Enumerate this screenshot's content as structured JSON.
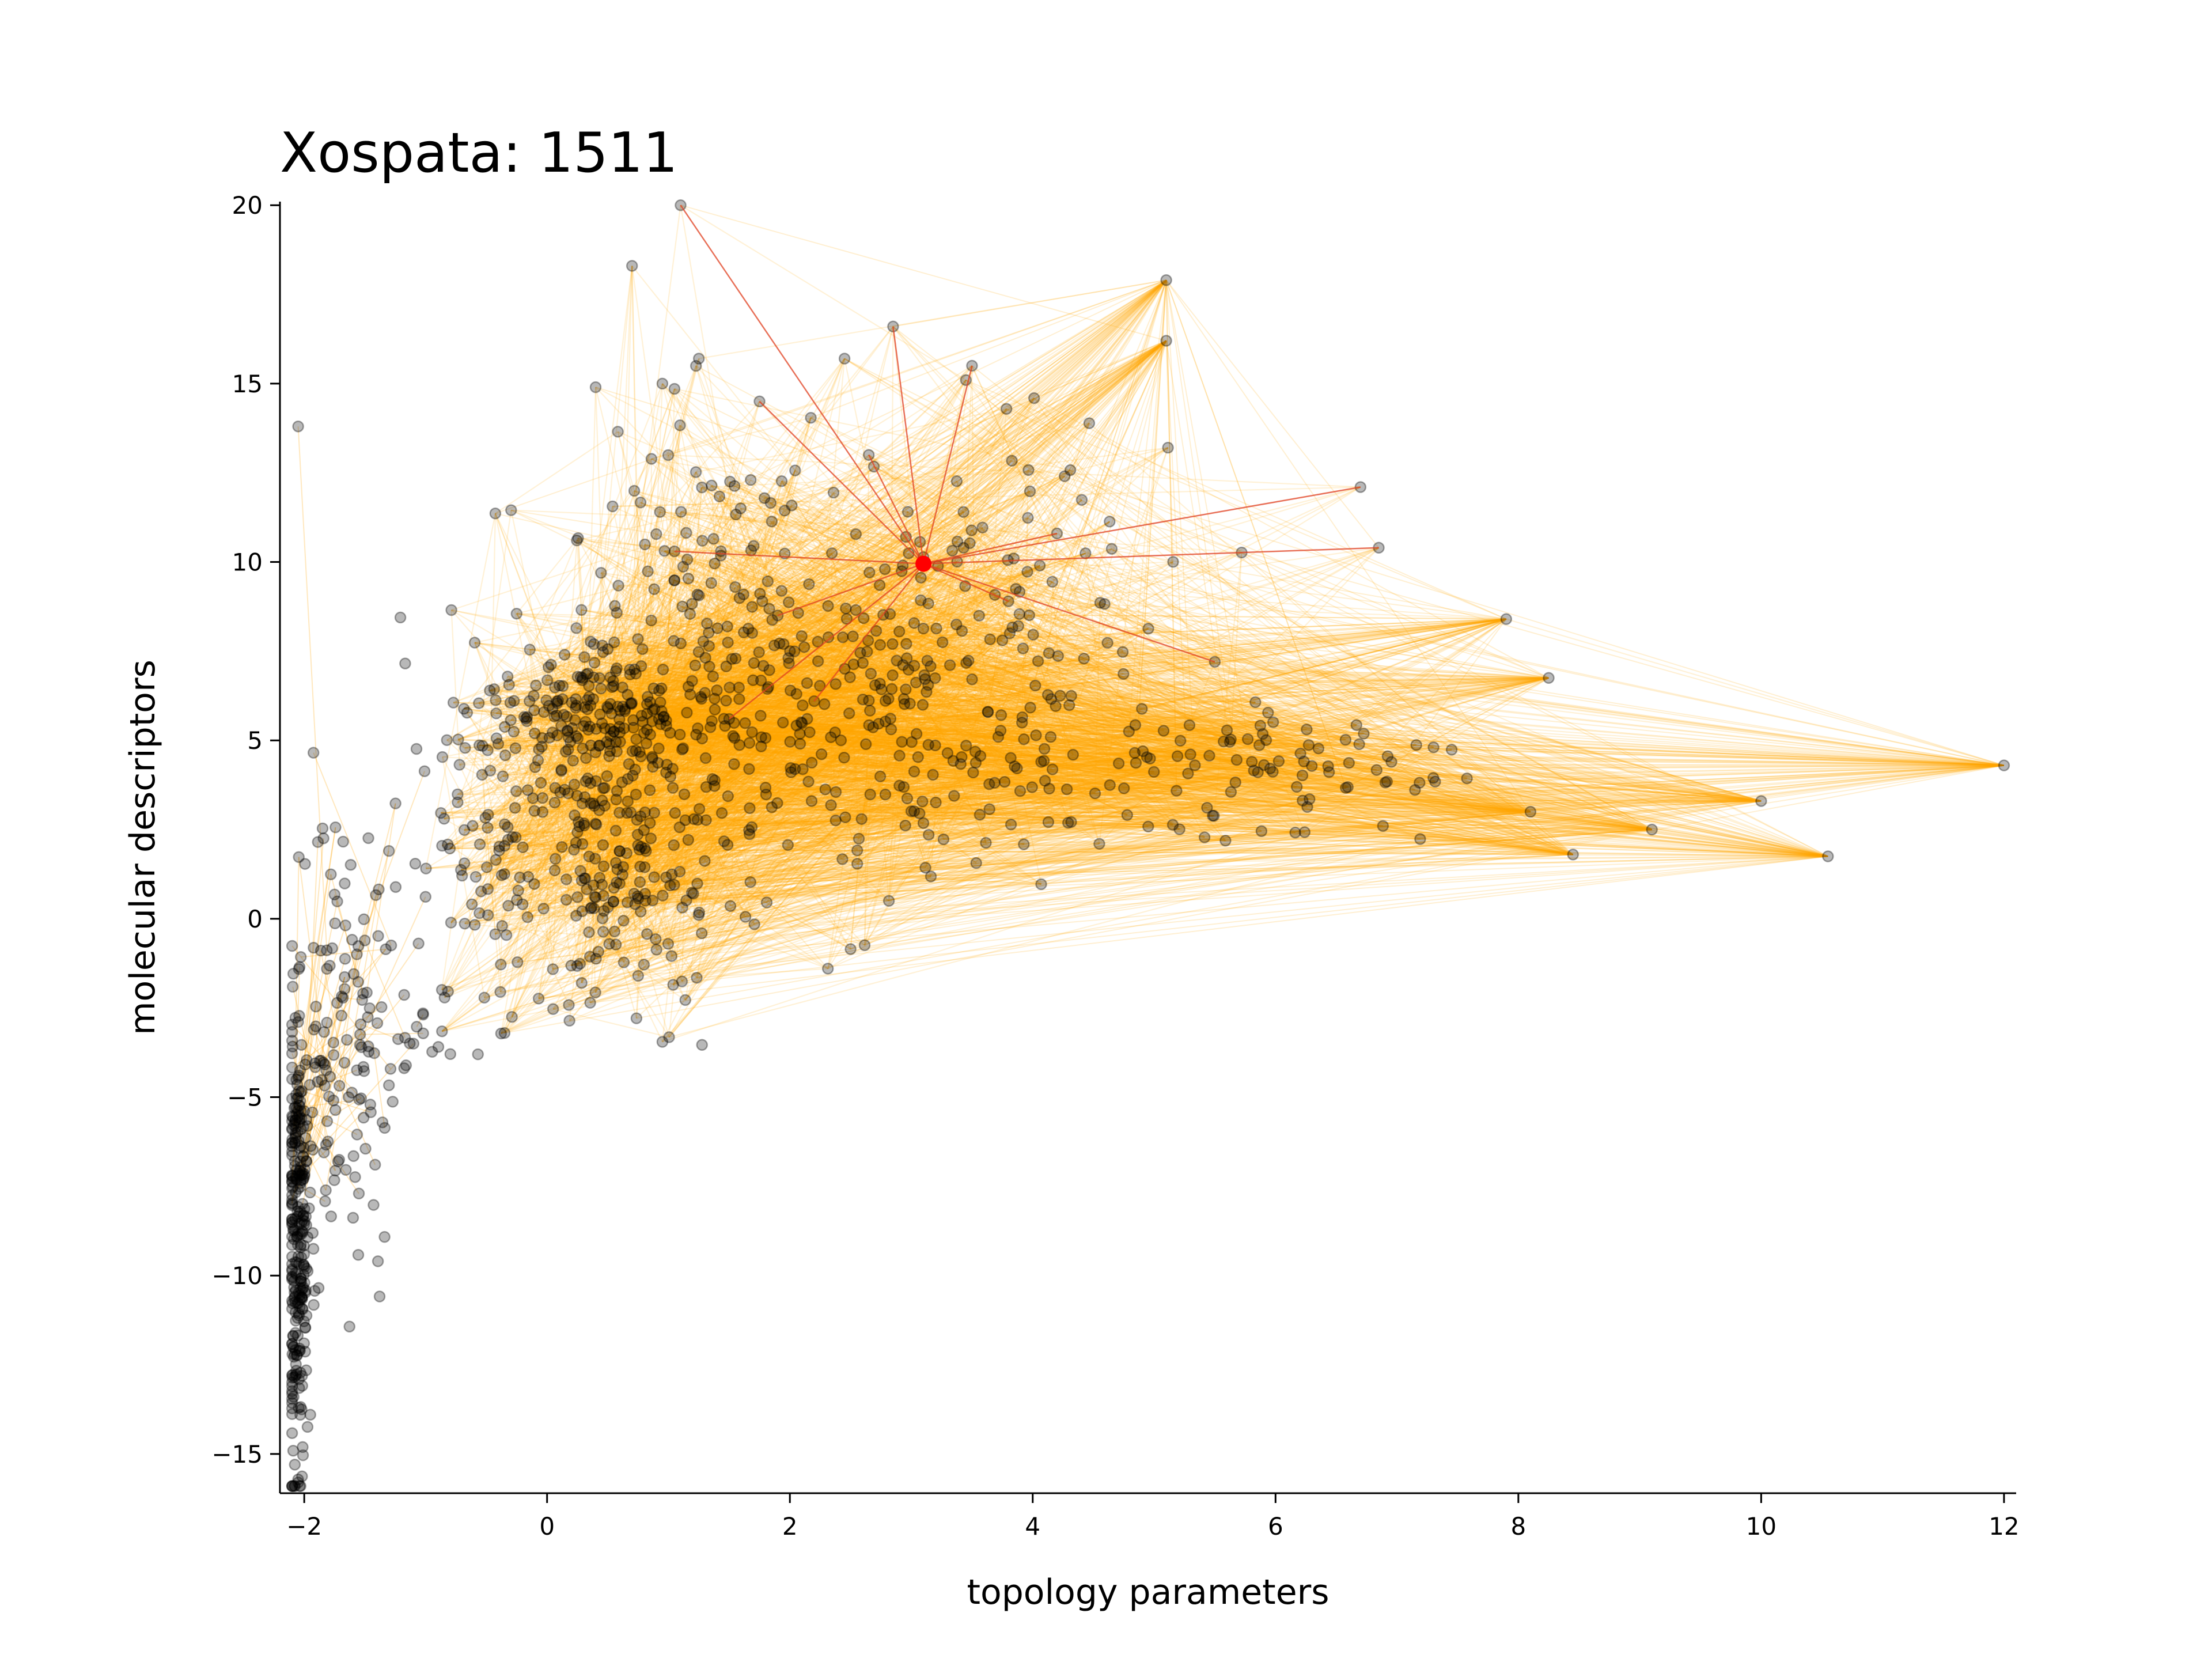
{
  "chart_data": {
    "type": "scatter",
    "title": "Xospata: 1511",
    "xlabel": "topology parameters",
    "ylabel": "molecular descriptors",
    "xlim": [
      -2.2,
      12.1
    ],
    "ylim": [
      -16.1,
      20.1
    ],
    "x_ticks": [
      -2,
      0,
      2,
      4,
      6,
      8,
      10,
      12
    ],
    "y_ticks": [
      -15,
      -10,
      -5,
      0,
      5,
      10,
      15,
      20
    ],
    "x_tick_labels": [
      "−2",
      "0",
      "2",
      "4",
      "6",
      "8",
      "10",
      "12"
    ],
    "y_tick_labels": [
      "−15",
      "−10",
      "−5",
      "0",
      "5",
      "10",
      "15",
      "20"
    ],
    "grid": false,
    "highlight_point": {
      "x": 3.1,
      "y": 9.95,
      "color": "#ff0000"
    },
    "highlight_neighbors": [
      {
        "x": 1.1,
        "y": 20.0
      },
      {
        "x": 2.85,
        "y": 16.6
      },
      {
        "x": 3.5,
        "y": 15.5
      },
      {
        "x": 1.75,
        "y": 14.5
      },
      {
        "x": 2.65,
        "y": 13.0
      },
      {
        "x": 6.7,
        "y": 12.1
      },
      {
        "x": 6.85,
        "y": 10.4
      },
      {
        "x": 1.05,
        "y": 10.3
      },
      {
        "x": 5.5,
        "y": 7.2
      },
      {
        "x": 2.2,
        "y": 6.1
      },
      {
        "x": 1.5,
        "y": 5.6
      },
      {
        "x": 4.2,
        "y": 10.8
      },
      {
        "x": 1.9,
        "y": 8.5
      },
      {
        "x": 3.8,
        "y": 8.9
      }
    ],
    "outlier_points": [
      {
        "x": 12.0,
        "y": 4.3
      },
      {
        "x": 10.55,
        "y": 1.75
      },
      {
        "x": 10.0,
        "y": 3.3
      },
      {
        "x": 9.1,
        "y": 2.5
      },
      {
        "x": 8.45,
        "y": 1.8
      },
      {
        "x": 8.25,
        "y": 6.75
      },
      {
        "x": 7.9,
        "y": 8.4
      },
      {
        "x": 8.1,
        "y": 3.0
      },
      {
        "x": 5.1,
        "y": 17.9
      },
      {
        "x": 5.1,
        "y": 16.2
      },
      {
        "x": 0.7,
        "y": 18.3
      },
      {
        "x": 2.5,
        "y": -0.85
      },
      {
        "x": -2.05,
        "y": 13.8
      },
      {
        "x": 0.4,
        "y": 14.9
      },
      {
        "x": 0.95,
        "y": 15.0
      },
      {
        "x": 1.25,
        "y": 15.7
      },
      {
        "x": 2.45,
        "y": 15.7
      },
      {
        "x": 3.45,
        "y": 15.1
      },
      {
        "x": 0.95,
        "y": -3.45
      },
      {
        "x": -0.35,
        "y": -3.2
      },
      {
        "x": -1.1,
        "y": -3.5
      },
      {
        "x": -1.55,
        "y": -7.7
      },
      {
        "x": -1.95,
        "y": -13.9
      },
      {
        "x": -2.05,
        "y": -15.8
      }
    ],
    "clusters": [
      {
        "name": "",
        "cx": -2.05,
        "cy": -9.0,
        "sx": 0.05,
        "sy": 3.5,
        "n": 260
      },
      {
        "name": "",
        "cx": -1.8,
        "cy": -4.5,
        "sx": 0.25,
        "sy": 3.5,
        "n": 120
      },
      {
        "name": "",
        "cx": -1.4,
        "cy": -2.0,
        "sx": 0.25,
        "sy": 2.0,
        "n": 50
      },
      {
        "name": "",
        "cx": -0.5,
        "cy": 2.5,
        "sx": 0.35,
        "sy": 2.8,
        "n": 110
      },
      {
        "name": "",
        "cx": 0.5,
        "cy": 5.5,
        "sx": 0.4,
        "sy": 1.3,
        "n": 200
      },
      {
        "name": "",
        "cx": 0.6,
        "cy": 1.0,
        "sx": 0.35,
        "sy": 2.0,
        "n": 140
      },
      {
        "name": "",
        "cx": 1.2,
        "cy": 10.0,
        "sx": 0.5,
        "sy": 2.0,
        "n": 80
      },
      {
        "name": "",
        "cx": 2.3,
        "cy": 5.5,
        "sx": 0.9,
        "sy": 2.5,
        "n": 220
      },
      {
        "name": "",
        "cx": 3.5,
        "cy": 8.5,
        "sx": 0.9,
        "sy": 2.3,
        "n": 110
      },
      {
        "name": "",
        "cx": 4.2,
        "cy": 4.0,
        "sx": 1.0,
        "sy": 1.0,
        "n": 70
      },
      {
        "name": "",
        "cx": 6.3,
        "cy": 4.3,
        "sx": 0.8,
        "sy": 0.9,
        "n": 60
      }
    ],
    "point_count": 1511,
    "edge_color": "#ffa500",
    "highlight_edge_color": "#e04020",
    "point_color": "#000000"
  }
}
